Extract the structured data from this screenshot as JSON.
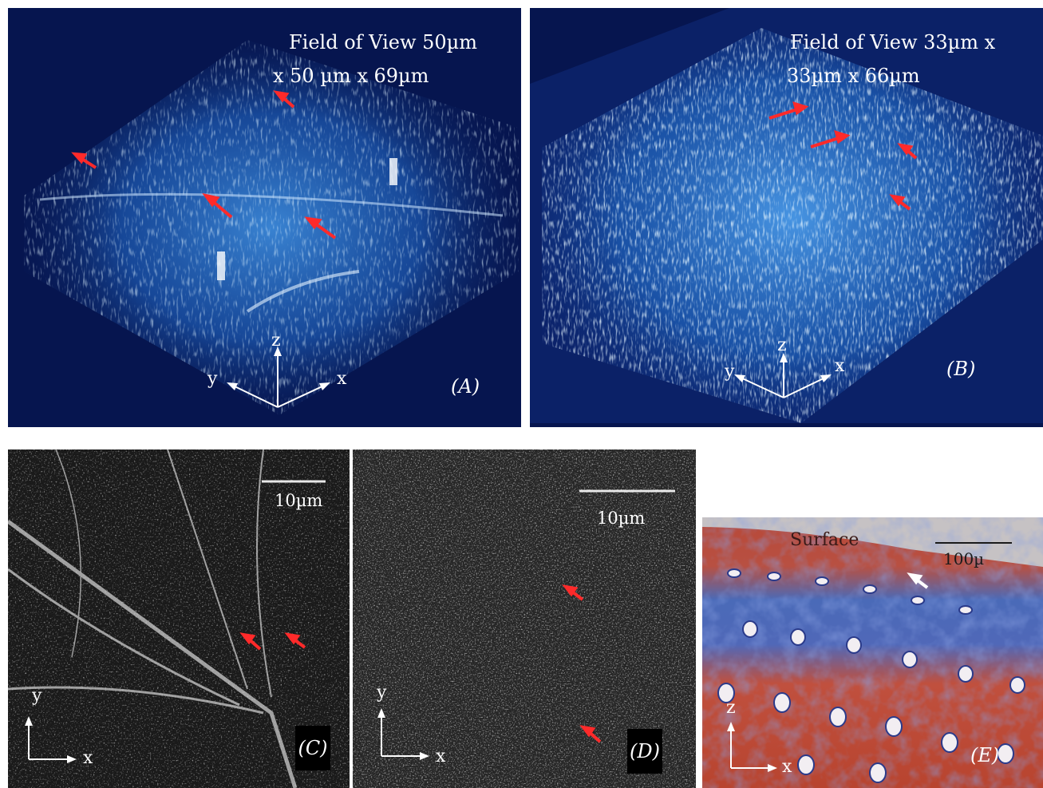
{
  "panels": {
    "a": {
      "fov_line1": "Field of View 50µm",
      "fov_line2": "x 50 µm x 69µm",
      "axis_x": "x",
      "axis_y": "y",
      "axis_z": "z",
      "tag": "(A)",
      "background": "#0a1c5e",
      "glow": "#4aa6ff"
    },
    "b": {
      "fov_line1": "Field of View 33µm x",
      "fov_line2": "33µm x 66µm",
      "axis_x": "x",
      "axis_y": "y",
      "axis_z": "z",
      "tag": "(B)",
      "background": "#0a1c5e",
      "glow": "#4aa6ff"
    },
    "c": {
      "scale": "10µm",
      "axis_x": "x",
      "axis_y": "y",
      "tag": "(C)"
    },
    "d": {
      "scale": "10µm",
      "axis_x": "x",
      "axis_y": "y",
      "tag": "(D)"
    },
    "e": {
      "surface": "Surface",
      "scale": "100µ",
      "axis_x": "x",
      "axis_z": "z",
      "tag": "(E)",
      "stain_red": "#b84a3a",
      "stain_blue": "#4060b8"
    }
  },
  "arrow_color": "#ff2a2a",
  "icons": [
    "arrow-icon",
    "axis-triad-icon"
  ]
}
